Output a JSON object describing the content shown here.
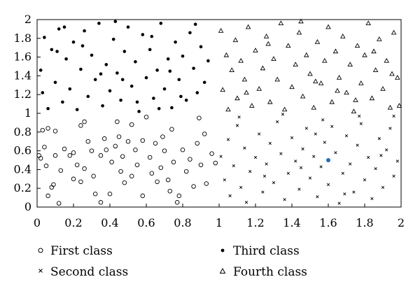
{
  "chart_data": {
    "type": "scatter",
    "title": "",
    "xlabel": "",
    "ylabel": "",
    "xlim": [
      0,
      2
    ],
    "ylim": [
      0,
      2
    ],
    "xticks": [
      "0",
      "0.2",
      "0.4",
      "0.6",
      "0.8",
      "1",
      "1.2",
      "1.4",
      "1.6",
      "1.8",
      "2"
    ],
    "yticks": [
      "0",
      "0.2",
      "0.4",
      "0.6",
      "0.8",
      "1",
      "1.2",
      "1.4",
      "1.6",
      "1.8",
      "2"
    ],
    "grid": false,
    "legend_position": "bottom",
    "legend_columns": 2,
    "series": [
      {
        "name": "First class",
        "marker": "open-circle",
        "color": "#000000",
        "points": [
          [
            0.01,
            0.55
          ],
          [
            0.02,
            0.52
          ],
          [
            0.03,
            0.82
          ],
          [
            0.04,
            0.64
          ],
          [
            0.05,
            0.44
          ],
          [
            0.06,
            0.84
          ],
          [
            0.08,
            0.21
          ],
          [
            0.09,
            0.24
          ],
          [
            0.1,
            0.81
          ],
          [
            0.12,
            0.04
          ],
          [
            0.15,
            0.62
          ],
          [
            0.18,
            0.55
          ],
          [
            0.2,
            0.58
          ],
          [
            0.22,
            0.45
          ],
          [
            0.24,
            0.27
          ],
          [
            0.26,
            0.41
          ],
          [
            0.26,
            0.91
          ],
          [
            0.28,
            0.7
          ],
          [
            0.3,
            0.6
          ],
          [
            0.31,
            0.33
          ],
          [
            0.32,
            0.14
          ],
          [
            0.35,
            0.55
          ],
          [
            0.37,
            0.73
          ],
          [
            0.38,
            0.61
          ],
          [
            0.4,
            0.14
          ],
          [
            0.41,
            0.48
          ],
          [
            0.43,
            0.65
          ],
          [
            0.44,
            0.91
          ],
          [
            0.45,
            0.75
          ],
          [
            0.47,
            0.54
          ],
          [
            0.48,
            0.26
          ],
          [
            0.5,
            0.7
          ],
          [
            0.52,
            0.33
          ],
          [
            0.54,
            0.61
          ],
          [
            0.55,
            0.45
          ],
          [
            0.58,
            0.71
          ],
          [
            0.6,
            0.96
          ],
          [
            0.62,
            0.53
          ],
          [
            0.63,
            0.36
          ],
          [
            0.65,
            0.68
          ],
          [
            0.66,
            0.27
          ],
          [
            0.68,
            0.42
          ],
          [
            0.7,
            0.6
          ],
          [
            0.72,
            0.29
          ],
          [
            0.74,
            0.83
          ],
          [
            0.75,
            0.48
          ],
          [
            0.78,
            0.12
          ],
          [
            0.8,
            0.61
          ],
          [
            0.82,
            0.38
          ],
          [
            0.84,
            0.51
          ],
          [
            0.86,
            0.22
          ],
          [
            0.88,
            0.68
          ],
          [
            0.9,
            0.45
          ],
          [
            0.92,
            0.78
          ],
          [
            0.93,
            0.25
          ],
          [
            0.96,
            0.57
          ],
          [
            0.98,
            0.47
          ],
          [
            0.06,
            0.12
          ],
          [
            0.2,
            0.3
          ],
          [
            0.35,
            0.05
          ],
          [
            0.58,
            0.12
          ],
          [
            0.77,
            0.05
          ],
          [
            0.13,
            0.39
          ],
          [
            0.46,
            0.38
          ],
          [
            0.69,
            0.75
          ],
          [
            0.89,
            0.95
          ],
          [
            0.24,
            0.87
          ],
          [
            0.52,
            0.88
          ],
          [
            0.1,
            0.55
          ],
          [
            0.73,
            0.17
          ]
        ]
      },
      {
        "name": "Second class",
        "marker": "x",
        "color": "#000000",
        "points": [
          [
            1.01,
            0.54
          ],
          [
            1.03,
            0.29
          ],
          [
            1.05,
            0.72
          ],
          [
            1.06,
            0.12
          ],
          [
            1.08,
            0.44
          ],
          [
            1.1,
            0.87
          ],
          [
            1.12,
            0.21
          ],
          [
            1.14,
            0.63
          ],
          [
            1.15,
            0.05
          ],
          [
            1.17,
            0.38
          ],
          [
            1.2,
            0.53
          ],
          [
            1.22,
            0.78
          ],
          [
            1.24,
            0.16
          ],
          [
            1.26,
            0.46
          ],
          [
            1.28,
            0.68
          ],
          [
            1.3,
            0.26
          ],
          [
            1.32,
            0.91
          ],
          [
            1.34,
            0.57
          ],
          [
            1.36,
            0.08
          ],
          [
            1.38,
            0.36
          ],
          [
            1.4,
            0.74
          ],
          [
            1.42,
            0.49
          ],
          [
            1.44,
            0.19
          ],
          [
            1.46,
            0.62
          ],
          [
            1.48,
            0.84
          ],
          [
            1.5,
            0.31
          ],
          [
            1.52,
            0.54
          ],
          [
            1.54,
            0.11
          ],
          [
            1.56,
            0.43
          ],
          [
            1.58,
            0.69
          ],
          [
            1.6,
            0.24
          ],
          [
            1.62,
            0.86
          ],
          [
            1.64,
            0.58
          ],
          [
            1.66,
            0.04
          ],
          [
            1.68,
            0.36
          ],
          [
            1.7,
            0.76
          ],
          [
            1.72,
            0.46
          ],
          [
            1.74,
            0.16
          ],
          [
            1.76,
            0.66
          ],
          [
            1.78,
            0.89
          ],
          [
            1.8,
            0.29
          ],
          [
            1.82,
            0.53
          ],
          [
            1.84,
            0.09
          ],
          [
            1.86,
            0.41
          ],
          [
            1.88,
            0.73
          ],
          [
            1.9,
            0.21
          ],
          [
            1.92,
            0.61
          ],
          [
            1.94,
            0.84
          ],
          [
            1.96,
            0.33
          ],
          [
            1.98,
            0.49
          ],
          [
            1.11,
            0.96
          ],
          [
            1.35,
            0.99
          ],
          [
            1.57,
            0.93
          ],
          [
            1.77,
            0.97
          ],
          [
            1.96,
            0.97
          ],
          [
            1.25,
            0.33
          ],
          [
            1.45,
            0.42
          ],
          [
            1.69,
            0.14
          ],
          [
            1.89,
            0.55
          ],
          [
            1.53,
            0.78
          ]
        ]
      },
      {
        "name": "Third class",
        "marker": "filled-circle",
        "color": "#000000",
        "points": [
          [
            0.02,
            1.46
          ],
          [
            0.03,
            1.22
          ],
          [
            0.04,
            1.81
          ],
          [
            0.06,
            1.05
          ],
          [
            0.08,
            1.68
          ],
          [
            0.1,
            1.33
          ],
          [
            0.12,
            1.9
          ],
          [
            0.14,
            1.12
          ],
          [
            0.16,
            1.58
          ],
          [
            0.18,
            1.26
          ],
          [
            0.2,
            1.76
          ],
          [
            0.22,
            1.04
          ],
          [
            0.24,
            1.47
          ],
          [
            0.26,
            1.88
          ],
          [
            0.28,
            1.18
          ],
          [
            0.3,
            1.62
          ],
          [
            0.32,
            1.36
          ],
          [
            0.34,
            1.96
          ],
          [
            0.36,
            1.08
          ],
          [
            0.38,
            1.52
          ],
          [
            0.4,
            1.24
          ],
          [
            0.42,
            1.79
          ],
          [
            0.44,
            1.43
          ],
          [
            0.46,
            1.14
          ],
          [
            0.48,
            1.66
          ],
          [
            0.5,
            1.92
          ],
          [
            0.52,
            1.29
          ],
          [
            0.54,
            1.55
          ],
          [
            0.56,
            1.02
          ],
          [
            0.58,
            1.84
          ],
          [
            0.6,
            1.38
          ],
          [
            0.62,
            1.68
          ],
          [
            0.64,
            1.16
          ],
          [
            0.66,
            1.46
          ],
          [
            0.68,
            1.96
          ],
          [
            0.7,
            1.26
          ],
          [
            0.72,
            1.58
          ],
          [
            0.74,
            1.06
          ],
          [
            0.76,
            1.76
          ],
          [
            0.78,
            1.36
          ],
          [
            0.8,
            1.61
          ],
          [
            0.82,
            1.14
          ],
          [
            0.84,
            1.86
          ],
          [
            0.86,
            1.48
          ],
          [
            0.88,
            1.22
          ],
          [
            0.9,
            1.71
          ],
          [
            0.92,
            1.33
          ],
          [
            0.94,
            1.56
          ],
          [
            0.25,
            1.72
          ],
          [
            0.47,
            1.36
          ],
          [
            0.63,
            1.82
          ],
          [
            0.55,
            1.12
          ],
          [
            0.35,
            1.42
          ],
          [
            0.15,
            1.92
          ],
          [
            0.73,
            1.45
          ],
          [
            0.67,
            1.05
          ],
          [
            0.43,
            1.98
          ],
          [
            0.87,
            1.95
          ],
          [
            0.11,
            1.66
          ],
          [
            0.79,
            1.18
          ]
        ]
      },
      {
        "name": "Fourth class",
        "marker": "open-triangle",
        "color": "#000000",
        "points": [
          [
            1.01,
            1.88
          ],
          [
            1.02,
            1.25
          ],
          [
            1.04,
            1.62
          ],
          [
            1.05,
            1.04
          ],
          [
            1.07,
            1.46
          ],
          [
            1.09,
            1.78
          ],
          [
            1.1,
            1.16
          ],
          [
            1.12,
            1.56
          ],
          [
            1.14,
            1.36
          ],
          [
            1.16,
            1.92
          ],
          [
            1.18,
            1.08
          ],
          [
            1.2,
            1.67
          ],
          [
            1.22,
            1.26
          ],
          [
            1.24,
            1.48
          ],
          [
            1.26,
            1.82
          ],
          [
            1.28,
            1.12
          ],
          [
            1.3,
            1.58
          ],
          [
            1.32,
            1.36
          ],
          [
            1.34,
            1.96
          ],
          [
            1.36,
            1.04
          ],
          [
            1.38,
            1.72
          ],
          [
            1.4,
            1.28
          ],
          [
            1.42,
            1.52
          ],
          [
            1.44,
            1.86
          ],
          [
            1.46,
            1.18
          ],
          [
            1.48,
            1.62
          ],
          [
            1.5,
            1.42
          ],
          [
            1.52,
            1.06
          ],
          [
            1.54,
            1.76
          ],
          [
            1.56,
            1.32
          ],
          [
            1.58,
            1.56
          ],
          [
            1.6,
            1.92
          ],
          [
            1.62,
            1.12
          ],
          [
            1.64,
            1.66
          ],
          [
            1.66,
            1.38
          ],
          [
            1.68,
            1.82
          ],
          [
            1.7,
            1.22
          ],
          [
            1.72,
            1.52
          ],
          [
            1.74,
            1.02
          ],
          [
            1.76,
            1.72
          ],
          [
            1.78,
            1.32
          ],
          [
            1.8,
            1.62
          ],
          [
            1.82,
            1.96
          ],
          [
            1.84,
            1.16
          ],
          [
            1.86,
            1.46
          ],
          [
            1.88,
            1.79
          ],
          [
            1.9,
            1.26
          ],
          [
            1.92,
            1.56
          ],
          [
            1.94,
            1.06
          ],
          [
            1.96,
            1.86
          ],
          [
            1.98,
            1.38
          ],
          [
            1.99,
            1.08
          ],
          [
            1.15,
            1.22
          ],
          [
            1.45,
            1.98
          ],
          [
            1.65,
            1.24
          ],
          [
            1.85,
            1.66
          ],
          [
            1.27,
            1.74
          ],
          [
            1.53,
            1.34
          ],
          [
            1.75,
            1.14
          ],
          [
            1.95,
            1.42
          ]
        ]
      },
      {
        "name": "",
        "marker": "filled-circle",
        "color": "#1f6fb5",
        "points": [
          [
            1.6,
            0.5
          ]
        ]
      }
    ]
  }
}
